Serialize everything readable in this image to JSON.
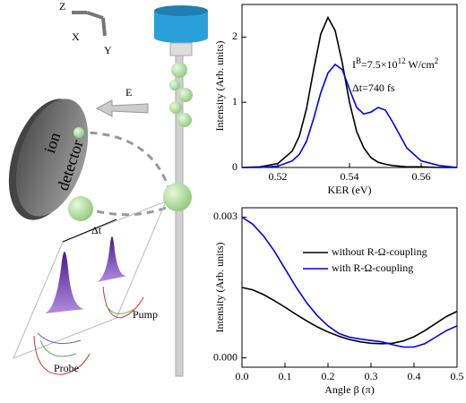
{
  "chart_data": [
    {
      "type": "line",
      "xlabel": "KER (eV)",
      "ylabel": "Intensity (Arb. units)",
      "x": [
        0.51,
        0.515,
        0.52,
        0.524,
        0.526,
        0.528,
        0.53,
        0.532,
        0.534,
        0.536,
        0.538,
        0.54,
        0.542,
        0.544,
        0.546,
        0.548,
        0.55,
        0.552,
        0.556,
        0.56,
        0.565,
        0.57
      ],
      "series": [
        {
          "color": "#000000",
          "values": [
            0.0,
            0.01,
            0.06,
            0.25,
            0.48,
            0.9,
            1.5,
            2.05,
            2.3,
            2.1,
            1.6,
            1.0,
            0.55,
            0.3,
            0.15,
            0.08,
            0.05,
            0.03,
            0.01,
            0.01,
            0.0,
            0.0
          ]
        },
        {
          "color": "#0000ee",
          "values": [
            0.0,
            0.0,
            0.02,
            0.1,
            0.2,
            0.4,
            0.75,
            1.15,
            1.45,
            1.58,
            1.5,
            1.2,
            0.92,
            0.82,
            0.85,
            0.92,
            0.88,
            0.7,
            0.3,
            0.1,
            0.03,
            0.0
          ]
        }
      ],
      "xlim": [
        0.51,
        0.57
      ],
      "xticks": [
        0.52,
        0.54,
        0.56
      ],
      "ylim": [
        0,
        2.5
      ],
      "yticks": [
        0,
        1,
        2
      ],
      "annotations": [
        [
          "I",
          "B",
          "=7.5×10",
          "12",
          " W/cm",
          "2"
        ],
        [
          "Δt=740 fs"
        ]
      ]
    },
    {
      "type": "line",
      "xlabel": "Angle  β (π)",
      "ylabel": "Intensity (Arb. units)",
      "x": [
        0,
        0.025,
        0.05,
        0.075,
        0.1,
        0.125,
        0.15,
        0.175,
        0.2,
        0.225,
        0.25,
        0.275,
        0.3,
        0.325,
        0.35,
        0.375,
        0.4,
        0.425,
        0.45,
        0.475,
        0.5
      ],
      "series": [
        {
          "name": "without R-Ω-coupling",
          "color": "#000000",
          "values": [
            0.0015,
            0.00145,
            0.00135,
            0.00122,
            0.00108,
            0.00093,
            0.00079,
            0.00066,
            0.00055,
            0.00046,
            0.00039,
            0.00034,
            0.00031,
            0.0003,
            0.00031,
            0.00036,
            0.00045,
            0.00058,
            0.00073,
            0.00088,
            0.00099
          ]
        },
        {
          "name": "with R-Ω-coupling",
          "color": "#0000ee",
          "values": [
            0.003,
            0.00285,
            0.0026,
            0.00228,
            0.0019,
            0.00152,
            0.00118,
            0.0009,
            0.00068,
            0.00052,
            0.00044,
            0.0004,
            0.00037,
            0.00034,
            0.00028,
            0.00023,
            0.00023,
            0.0003,
            0.00044,
            0.00058,
            0.00068
          ]
        }
      ],
      "xlim": [
        0,
        0.5
      ],
      "xticks": [
        {
          "value": 0,
          "label": "0.0"
        },
        0.1,
        0.2,
        0.3,
        0.4,
        0.5
      ],
      "ylim": [
        -0.0002,
        0.0032
      ],
      "yticks": [
        {
          "value": 0,
          "label": "0.000"
        },
        {
          "value": 0.003,
          "label": "0.003"
        }
      ],
      "legend": "upper right"
    }
  ],
  "diagram": {
    "axes": [
      "Z",
      "X",
      "Y"
    ],
    "field": "E",
    "detector": [
      "ion",
      "detector"
    ],
    "delay": "Δt",
    "pump": "Pump",
    "probe": "Probe"
  }
}
